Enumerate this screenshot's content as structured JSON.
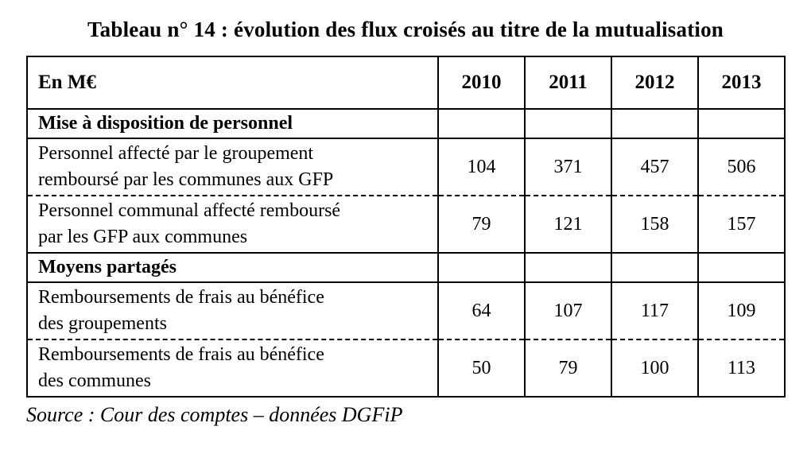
{
  "title": "Tableau n° 14 : évolution des flux croisés au titre de la mutualisation",
  "table": {
    "unit_header": "En M€",
    "year_columns": [
      "2010",
      "2011",
      "2012",
      "2013"
    ],
    "rows": [
      {
        "type": "section",
        "label": "Mise à disposition de personnel",
        "values": [
          "",
          "",
          "",
          ""
        ],
        "dashed_bottom": false
      },
      {
        "type": "data",
        "label": "Personnel affecté par le groupement\nremboursé par les communes aux GFP",
        "values": [
          "104",
          "371",
          "457",
          "506"
        ],
        "dashed_bottom": true
      },
      {
        "type": "data",
        "label": "Personnel communal affecté remboursé\npar les GFP aux communes",
        "values": [
          "79",
          "121",
          "158",
          "157"
        ],
        "dashed_bottom": false
      },
      {
        "type": "section",
        "label": "Moyens partagés",
        "values": [
          "",
          "",
          "",
          ""
        ],
        "dashed_bottom": false
      },
      {
        "type": "data",
        "label": "Remboursements de frais au bénéfice\ndes groupements",
        "values": [
          "64",
          "107",
          "117",
          "109"
        ],
        "dashed_bottom": true
      },
      {
        "type": "data",
        "label": "Remboursements de frais au bénéfice\ndes communes",
        "values": [
          "50",
          "79",
          "100",
          "113"
        ],
        "dashed_bottom": false
      }
    ]
  },
  "source": "Source : Cour des comptes – données DGFiP",
  "colors": {
    "text": "#000000",
    "border": "#000000",
    "background": "#ffffff"
  }
}
